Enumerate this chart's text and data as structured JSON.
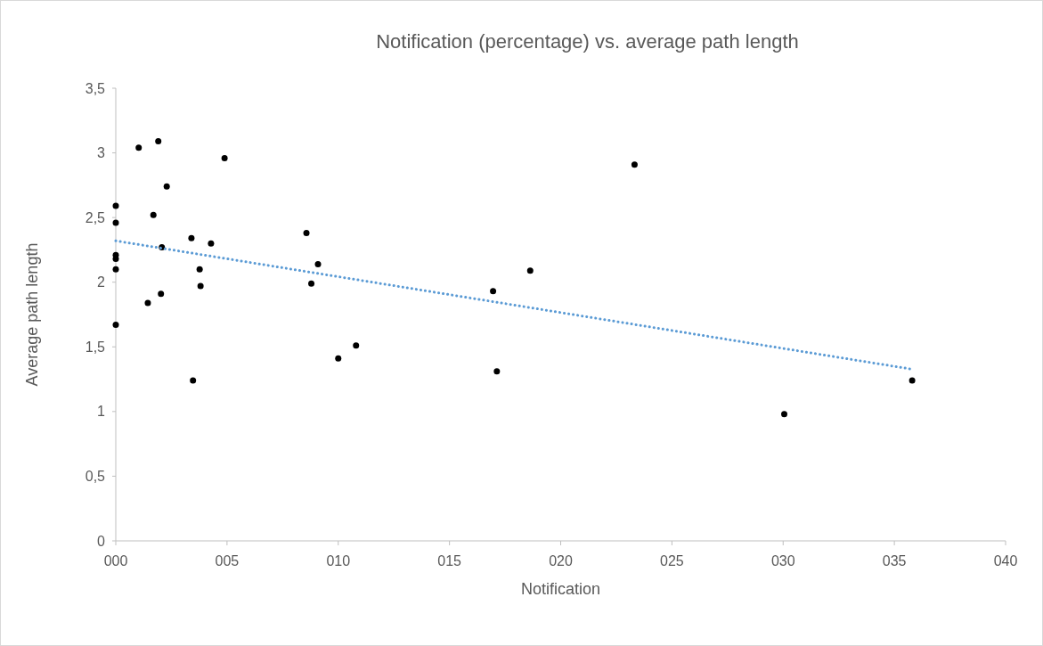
{
  "chart_data": {
    "type": "scatter",
    "title": "Notification (percentage)  vs. average path length",
    "xlabel": "Notification",
    "ylabel": "Average path length",
    "xlim": [
      0,
      40
    ],
    "xticks": [
      {
        "value": 0,
        "label": "000"
      },
      {
        "value": 5,
        "label": "005"
      },
      {
        "value": 10,
        "label": "010"
      },
      {
        "value": 15,
        "label": "015"
      },
      {
        "value": 20,
        "label": "020"
      },
      {
        "value": 25,
        "label": "025"
      },
      {
        "value": 30,
        "label": "030"
      },
      {
        "value": 35,
        "label": "035"
      },
      {
        "value": 40,
        "label": "040"
      }
    ],
    "ylim": [
      0,
      3.5
    ],
    "yticks": [
      {
        "value": 0,
        "label": "0"
      },
      {
        "value": 0.5,
        "label": "0,5"
      },
      {
        "value": 1,
        "label": "1"
      },
      {
        "value": 1.5,
        "label": "1,5"
      },
      {
        "value": 2,
        "label": "2"
      },
      {
        "value": 2.5,
        "label": "2,5"
      },
      {
        "value": 3,
        "label": "3"
      },
      {
        "value": 3.5,
        "label": "3,5"
      }
    ],
    "grid": false,
    "marker": "circle",
    "series": [
      {
        "color": "#000000",
        "x": [
          0,
          0,
          0,
          0,
          0,
          0,
          1.03,
          1.91,
          4.89,
          2.29,
          1.69,
          3.4,
          4.28,
          2.07,
          3.77,
          3.81,
          2.03,
          1.44,
          3.47,
          8.57,
          9.09,
          8.79,
          10.0,
          10.8,
          23.32,
          18.63,
          16.96,
          17.13,
          30.05,
          35.8
        ],
        "values": [
          2.59,
          2.46,
          2.21,
          2.18,
          2.1,
          1.67,
          3.04,
          3.09,
          2.96,
          2.74,
          2.52,
          2.34,
          2.3,
          2.27,
          2.1,
          1.97,
          1.91,
          1.84,
          1.24,
          2.38,
          2.14,
          1.99,
          1.41,
          1.51,
          2.91,
          2.09,
          1.93,
          1.31,
          0.98,
          1.24
        ]
      },
      {
        "type": "line",
        "color": "#5b9bd5",
        "line_style": "dotted",
        "marker": "none",
        "x": [
          0,
          35.7
        ],
        "values": [
          2.32,
          1.33
        ]
      }
    ]
  }
}
